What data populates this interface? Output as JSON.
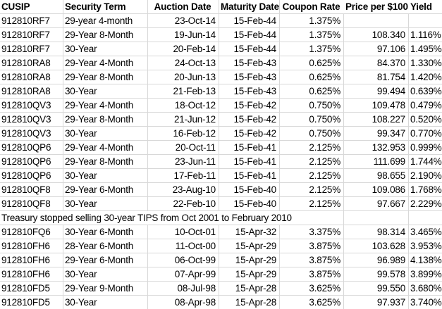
{
  "colors": {
    "gridline": "#d8d8d8",
    "background": "#ffffff",
    "text": "#000000"
  },
  "table": {
    "columns": [
      {
        "label": "CUSIP",
        "align": "left",
        "header_align": "left"
      },
      {
        "label": "Security Term",
        "align": "left",
        "header_align": "left"
      },
      {
        "label": "Auction Date",
        "align": "right",
        "header_align": "center"
      },
      {
        "label": "Maturity Date",
        "align": "right",
        "header_align": "center"
      },
      {
        "label": "Coupon Rate",
        "align": "right",
        "header_align": "center"
      },
      {
        "label": "Price per $100",
        "align": "right",
        "header_align": "center"
      },
      {
        "label": "Yield",
        "align": "right",
        "header_align": "left"
      }
    ],
    "rows": [
      {
        "cells": [
          "912810RF7",
          "29-year 4-month",
          "23-Oct-14",
          "15-Feb-44",
          "1.375%",
          "",
          ""
        ]
      },
      {
        "cells": [
          "912810RF7",
          "29-Year 8-Month",
          "19-Jun-14",
          "15-Feb-44",
          "1.375%",
          "108.340",
          "1.116%"
        ]
      },
      {
        "cells": [
          "912810RF7",
          "30-Year",
          "20-Feb-14",
          "15-Feb-44",
          "1.375%",
          "97.106",
          "1.495%"
        ]
      },
      {
        "cells": [
          "912810RA8",
          "29-Year 4-Month",
          "24-Oct-13",
          "15-Feb-43",
          "0.625%",
          "84.370",
          "1.330%"
        ]
      },
      {
        "cells": [
          "912810RA8",
          "29-Year 8-Month",
          "20-Jun-13",
          "15-Feb-43",
          "0.625%",
          "81.754",
          "1.420%"
        ]
      },
      {
        "cells": [
          "912810RA8",
          "30-Year",
          "21-Feb-13",
          "15-Feb-43",
          "0.625%",
          "99.494",
          "0.639%"
        ]
      },
      {
        "cells": [
          "912810QV3",
          "29-Year 4-Month",
          "18-Oct-12",
          "15-Feb-42",
          "0.750%",
          "109.478",
          "0.479%"
        ]
      },
      {
        "cells": [
          "912810QV3",
          "29-Year 8-Month",
          "21-Jun-12",
          "15-Feb-42",
          "0.750%",
          "108.227",
          "0.520%"
        ]
      },
      {
        "cells": [
          "912810QV3",
          "30-Year",
          "16-Feb-12",
          "15-Feb-42",
          "0.750%",
          "99.347",
          "0.770%"
        ]
      },
      {
        "cells": [
          "912810QP6",
          "29-Year 4-Month",
          "20-Oct-11",
          "15-Feb-41",
          "2.125%",
          "132.953",
          "0.999%"
        ]
      },
      {
        "cells": [
          "912810QP6",
          "29-Year 8-Month",
          "23-Jun-11",
          "15-Feb-41",
          "2.125%",
          "111.699",
          "1.744%"
        ]
      },
      {
        "cells": [
          "912810QP6",
          "30-Year",
          "17-Feb-11",
          "15-Feb-41",
          "2.125%",
          "98.655",
          "2.190%"
        ]
      },
      {
        "cells": [
          "912810QF8",
          "29-Year 6-Month",
          "23-Aug-10",
          "15-Feb-40",
          "2.125%",
          "109.086",
          "1.768%"
        ]
      },
      {
        "cells": [
          "912810QF8",
          "30-Year",
          "22-Feb-10",
          "15-Feb-40",
          "2.125%",
          "97.667",
          "2.229%"
        ]
      },
      {
        "note": "Treasury stopped selling 30-year TIPS from Oct 2001 to February 2010"
      },
      {
        "cells": [
          "912810FQ6",
          "30-Year 6-Month",
          "10-Oct-01",
          "15-Apr-32",
          "3.375%",
          "98.314",
          "3.465%"
        ]
      },
      {
        "cells": [
          "912810FH6",
          "28-Year 6-Month",
          "11-Oct-00",
          "15-Apr-29",
          "3.875%",
          "103.628",
          "3.953%"
        ]
      },
      {
        "cells": [
          "912810FH6",
          "29-Year 6-Month",
          "06-Oct-99",
          "15-Apr-29",
          "3.875%",
          "96.989",
          "4.138%"
        ]
      },
      {
        "cells": [
          "912810FH6",
          "30-Year",
          "07-Apr-99",
          "15-Apr-29",
          "3.875%",
          "99.578",
          "3.899%"
        ]
      },
      {
        "cells": [
          "912810FD5",
          "29-Year 9-Month",
          "08-Jul-98",
          "15-Apr-28",
          "3.625%",
          "99.550",
          "3.680%"
        ]
      },
      {
        "cells": [
          "912810FD5",
          "30-Year",
          "08-Apr-98",
          "15-Apr-28",
          "3.625%",
          "97.937",
          "3.740%"
        ]
      }
    ]
  }
}
